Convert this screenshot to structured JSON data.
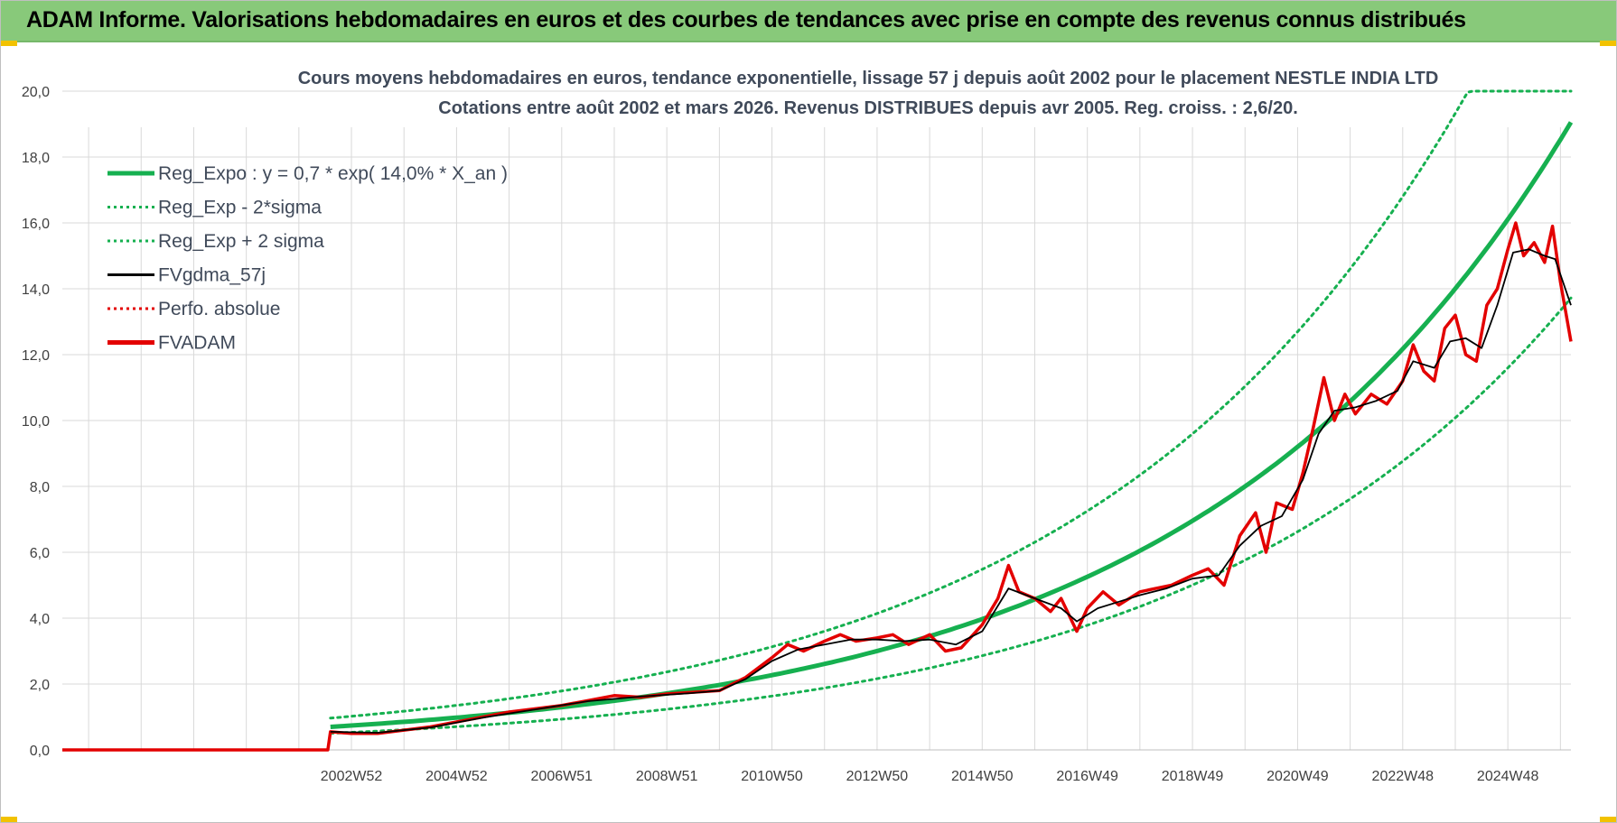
{
  "header": {
    "title": "ADAM Informe. Valorisations hebdomadaires en euros et des courbes de tendances avec prise en compte des revenus connus distribués"
  },
  "colors": {
    "header_bg": "#88c97a",
    "reg_expo": "#16b050",
    "sigma": "#16b050",
    "fvgdma": "#000000",
    "perfo": "#e30000",
    "fvadam": "#e30000",
    "grid": "#d9d9d9"
  },
  "chart_data": {
    "type": "line",
    "title_line1": "Cours moyens hebdomadaires en euros, tendance exponentielle, lissage 57 j depuis août 2002 pour le placement NESTLE INDIA LTD",
    "title_line2": "Cotations entre août 2002 et mars 2026.  Revenus DISTRIBUES depuis avr 2005. Reg. croiss. : 2,6/20.",
    "ylim": [
      0,
      20
    ],
    "y_ticks": [
      "0,0",
      "2,0",
      "4,0",
      "6,0",
      "8,0",
      "10,0",
      "12,0",
      "14,0",
      "16,0",
      "18,0",
      "20,0"
    ],
    "x_range": [
      1997.5,
      2026.2
    ],
    "x_ticks": [
      {
        "label": "2002W52",
        "year": 2003.0
      },
      {
        "label": "2004W52",
        "year": 2005.0
      },
      {
        "label": "2006W51",
        "year": 2007.0
      },
      {
        "label": "2008W51",
        "year": 2009.0
      },
      {
        "label": "2010W50",
        "year": 2011.0
      },
      {
        "label": "2012W50",
        "year": 2013.0
      },
      {
        "label": "2014W50",
        "year": 2015.0
      },
      {
        "label": "2016W49",
        "year": 2017.0
      },
      {
        "label": "2018W49",
        "year": 2019.0
      },
      {
        "label": "2020W49",
        "year": 2021.0
      },
      {
        "label": "2022W48",
        "year": 2023.0
      },
      {
        "label": "2024W48",
        "year": 2025.0
      }
    ],
    "grid": true,
    "legend_position": "top-left",
    "legend": [
      {
        "label": "Reg_Expo : y = 0,7 * exp( 14,0% *  X_an )",
        "style": "thick-solid",
        "color": "#16b050"
      },
      {
        "label": "Reg_Exp - 2*sigma",
        "style": "dotted",
        "color": "#16b050"
      },
      {
        "label": "Reg_Exp + 2 sigma",
        "style": "dotted",
        "color": "#16b050"
      },
      {
        "label": "FVgdma_57j",
        "style": "solid",
        "color": "#000000"
      },
      {
        "label": "Perfo. absolue",
        "style": "dotted",
        "color": "#e30000"
      },
      {
        "label": "FVADAM",
        "style": "thick-solid",
        "color": "#e30000"
      }
    ],
    "series": [
      {
        "name": "Reg_Expo : y = 0,7 * exp( 14,0% *  X_an )",
        "x_start": 2002.6,
        "x_end": 2026.2,
        "base": 0.7,
        "rate": 0.14,
        "factor": 1.0,
        "cap": 20
      },
      {
        "name": "Reg_Exp - 2*sigma",
        "x_start": 2002.6,
        "x_end": 2026.2,
        "base": 0.7,
        "rate": 0.14,
        "factor": 0.72,
        "cap": 20
      },
      {
        "name": "Reg_Exp + 2 sigma",
        "x_start": 2002.6,
        "x_end": 2026.2,
        "base": 0.7,
        "rate": 0.14,
        "factor": 1.38,
        "cap": 20
      },
      {
        "name": "FVADAM",
        "points": [
          [
            1997.5,
            0.0
          ],
          [
            2002.55,
            0.0
          ],
          [
            2002.6,
            0.55
          ],
          [
            2003.0,
            0.5
          ],
          [
            2003.5,
            0.5
          ],
          [
            2004.0,
            0.6
          ],
          [
            2004.5,
            0.7
          ],
          [
            2005.0,
            0.85
          ],
          [
            2005.5,
            1.0
          ],
          [
            2006.0,
            1.15
          ],
          [
            2006.5,
            1.25
          ],
          [
            2007.0,
            1.35
          ],
          [
            2007.5,
            1.5
          ],
          [
            2008.0,
            1.65
          ],
          [
            2008.5,
            1.6
          ],
          [
            2009.0,
            1.7
          ],
          [
            2009.5,
            1.75
          ],
          [
            2010.0,
            1.8
          ],
          [
            2010.5,
            2.2
          ],
          [
            2011.0,
            2.8
          ],
          [
            2011.3,
            3.2
          ],
          [
            2011.6,
            3.0
          ],
          [
            2012.0,
            3.3
          ],
          [
            2012.3,
            3.5
          ],
          [
            2012.6,
            3.3
          ],
          [
            2013.0,
            3.4
          ],
          [
            2013.3,
            3.5
          ],
          [
            2013.6,
            3.2
          ],
          [
            2014.0,
            3.5
          ],
          [
            2014.3,
            3.0
          ],
          [
            2014.6,
            3.1
          ],
          [
            2015.0,
            3.8
          ],
          [
            2015.3,
            4.6
          ],
          [
            2015.5,
            5.6
          ],
          [
            2015.7,
            4.8
          ],
          [
            2016.0,
            4.6
          ],
          [
            2016.3,
            4.2
          ],
          [
            2016.5,
            4.6
          ],
          [
            2016.8,
            3.6
          ],
          [
            2017.0,
            4.3
          ],
          [
            2017.3,
            4.8
          ],
          [
            2017.6,
            4.4
          ],
          [
            2018.0,
            4.8
          ],
          [
            2018.3,
            4.9
          ],
          [
            2018.6,
            5.0
          ],
          [
            2019.0,
            5.3
          ],
          [
            2019.3,
            5.5
          ],
          [
            2019.6,
            5.0
          ],
          [
            2019.9,
            6.5
          ],
          [
            2020.2,
            7.2
          ],
          [
            2020.4,
            6.0
          ],
          [
            2020.6,
            7.5
          ],
          [
            2020.9,
            7.3
          ],
          [
            2021.1,
            8.4
          ],
          [
            2021.3,
            9.8
          ],
          [
            2021.5,
            11.3
          ],
          [
            2021.7,
            10.0
          ],
          [
            2021.9,
            10.8
          ],
          [
            2022.1,
            10.2
          ],
          [
            2022.4,
            10.8
          ],
          [
            2022.7,
            10.5
          ],
          [
            2023.0,
            11.2
          ],
          [
            2023.2,
            12.3
          ],
          [
            2023.4,
            11.5
          ],
          [
            2023.6,
            11.2
          ],
          [
            2023.8,
            12.8
          ],
          [
            2024.0,
            13.2
          ],
          [
            2024.2,
            12.0
          ],
          [
            2024.4,
            11.8
          ],
          [
            2024.6,
            13.5
          ],
          [
            2024.8,
            14.0
          ],
          [
            2025.0,
            15.2
          ],
          [
            2025.15,
            16.0
          ],
          [
            2025.3,
            15.0
          ],
          [
            2025.5,
            15.4
          ],
          [
            2025.7,
            14.8
          ],
          [
            2025.85,
            15.9
          ],
          [
            2026.0,
            14.2
          ],
          [
            2026.1,
            13.3
          ],
          [
            2026.2,
            12.4
          ]
        ]
      },
      {
        "name": "FVgdma_57j",
        "points": [
          [
            2002.6,
            0.55
          ],
          [
            2003.5,
            0.52
          ],
          [
            2004.5,
            0.68
          ],
          [
            2005.5,
            0.98
          ],
          [
            2006.5,
            1.23
          ],
          [
            2007.5,
            1.48
          ],
          [
            2008.5,
            1.62
          ],
          [
            2009.5,
            1.73
          ],
          [
            2010.0,
            1.8
          ],
          [
            2010.5,
            2.15
          ],
          [
            2011.0,
            2.7
          ],
          [
            2011.5,
            3.05
          ],
          [
            2012.0,
            3.2
          ],
          [
            2012.5,
            3.35
          ],
          [
            2013.0,
            3.35
          ],
          [
            2013.5,
            3.3
          ],
          [
            2014.0,
            3.35
          ],
          [
            2014.5,
            3.2
          ],
          [
            2015.0,
            3.6
          ],
          [
            2015.5,
            4.9
          ],
          [
            2016.0,
            4.6
          ],
          [
            2016.5,
            4.3
          ],
          [
            2016.8,
            3.9
          ],
          [
            2017.2,
            4.3
          ],
          [
            2017.6,
            4.5
          ],
          [
            2018.0,
            4.7
          ],
          [
            2018.5,
            4.9
          ],
          [
            2019.0,
            5.2
          ],
          [
            2019.5,
            5.3
          ],
          [
            2019.9,
            6.2
          ],
          [
            2020.3,
            6.8
          ],
          [
            2020.7,
            7.1
          ],
          [
            2021.1,
            8.2
          ],
          [
            2021.4,
            9.6
          ],
          [
            2021.7,
            10.3
          ],
          [
            2022.1,
            10.4
          ],
          [
            2022.5,
            10.6
          ],
          [
            2022.9,
            10.9
          ],
          [
            2023.2,
            11.8
          ],
          [
            2023.6,
            11.6
          ],
          [
            2023.9,
            12.4
          ],
          [
            2024.2,
            12.5
          ],
          [
            2024.5,
            12.2
          ],
          [
            2024.8,
            13.5
          ],
          [
            2025.1,
            15.1
          ],
          [
            2025.4,
            15.2
          ],
          [
            2025.7,
            15.0
          ],
          [
            2025.9,
            14.9
          ],
          [
            2026.2,
            13.5
          ]
        ]
      }
    ]
  }
}
